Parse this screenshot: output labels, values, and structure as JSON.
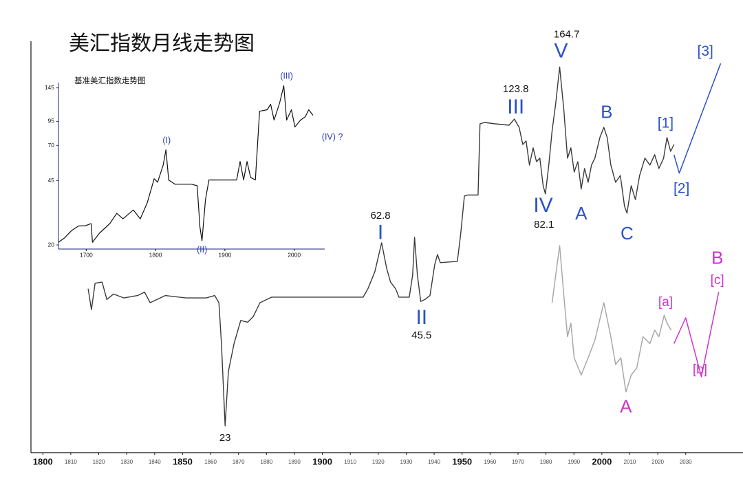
{
  "chart_data": [
    {
      "type": "line",
      "title": "美汇指数月线走势图",
      "xlim": [
        1796,
        2050
      ],
      "xticks": [
        1800,
        1810,
        1820,
        1830,
        1840,
        1850,
        1860,
        1870,
        1880,
        1890,
        1900,
        1910,
        1920,
        1930,
        1940,
        1950,
        1960,
        1970,
        1980,
        1990,
        2000,
        2010,
        2020,
        2030
      ],
      "ylim": [
        20,
        200
      ],
      "log_scale": true,
      "series": [
        {
          "color": "#3a3a3a",
          "x": [
            1816.2,
            1817.4,
            1818.7,
            1821.2,
            1822.9,
            1825.3,
            1829,
            1833.9,
            1836.4,
            1838.4,
            1843.8,
            1851.2,
            1858.5,
            1861.5,
            1863,
            1863.9,
            1865.2,
            1866.4,
            1868.4,
            1870.8,
            1873.3,
            1875.3,
            1877.7,
            1881.9,
            1890.5,
            1900.3,
            1907.7,
            1914.6,
            1916.3,
            1918.8,
            1921.2,
            1923,
            1924.4,
            1926.2,
            1927.4,
            1931.1,
            1932.3,
            1933,
            1934,
            1935.2,
            1936.7,
            1938.5,
            1940.2,
            1941.2,
            1942.2,
            1948.3,
            1949.5,
            1950.8,
            1952,
            1955.7,
            1956.4,
            1958.1,
            1961.8,
            1966.8,
            1968.7,
            1970.4,
            1971.7,
            1972.9,
            1974.1,
            1975.4,
            1976.6,
            1977.8,
            1979,
            1979.8,
            1981,
            1982.2,
            1983.5,
            1984.9,
            1986.4,
            1987.7,
            1988.9,
            1990.1,
            1991.4,
            1992.6,
            1993.8,
            1995.1,
            1996.3,
            1997.5,
            1999.3,
            2000.7,
            2001.9,
            2003.2,
            2004.9,
            2006.6,
            2008.1,
            2009,
            2010.5,
            2012,
            2013.5,
            2015.4,
            2017.2,
            2018.9,
            2020.4,
            2022.1,
            2023.3,
            2024.6,
            2025.8
          ],
          "values": [
            48.8,
            43.5,
            50.3,
            50.6,
            46,
            47.4,
            46.4,
            47,
            47.9,
            45.2,
            47,
            46.4,
            46.4,
            47,
            45.2,
            36.1,
            23,
            31,
            36.1,
            41,
            40.6,
            41.9,
            45.2,
            46.6,
            46.6,
            46.6,
            46.6,
            46.6,
            48.8,
            53.6,
            62.8,
            54.6,
            50.6,
            48.8,
            46.6,
            46.6,
            52.6,
            64.7,
            52.6,
            45.5,
            46,
            47,
            55.7,
            58.9,
            56.3,
            56.7,
            66,
            81.1,
            81.6,
            81.6,
            120.6,
            121.5,
            120.6,
            119.7,
            123.8,
            118.3,
            107.7,
            109.8,
            96.2,
            105.7,
            98,
            99.9,
            85.9,
            82.1,
            96.2,
            116,
            135,
            164.7,
            130,
            99.9,
            105.7,
            92.6,
            98,
            84.3,
            94.4,
            87.5,
            96.2,
            99.9,
            111.9,
            118.3,
            111.9,
            96.2,
            87.5,
            90.8,
            76.7,
            73.9,
            85.9,
            79.6,
            90.8,
            99.9,
            96.2,
            101.8,
            94.4,
            99.9,
            111.9,
            103.7,
            107.7
          ]
        },
        {
          "color": "#2a52c8",
          "x": [
            2025.8,
            2027.7,
            2042.5
          ],
          "values": [
            101.8,
            92,
            168
          ]
        },
        {
          "color": "#cc33cc",
          "x": [
            2025.8,
            2030,
            2035.6,
            2041.8
          ],
          "values": [
            36.1,
            41.6,
            30.1,
            47.9
          ]
        },
        {
          "color": "#a8a8a8",
          "x": [
            1982.2,
            1983.5,
            1984.9,
            1986.4,
            1987.7,
            1988.9,
            1990.1,
            1992.6,
            1995.1,
            1997.5,
            2000.7,
            2003.2,
            2004.9,
            2006.8,
            2008.6,
            2010.5,
            2012.5,
            2014.7,
            2017.2,
            2018.9,
            2020.4,
            2022.3,
            2023.3,
            2024.8
          ],
          "values": [
            45.2,
            52.6,
            61.8,
            47,
            37.5,
            40.4,
            33.4,
            30.4,
            33.4,
            36.8,
            45.2,
            37.5,
            32.2,
            33.4,
            27.7,
            30.4,
            31.6,
            37.5,
            36.1,
            38.9,
            37.5,
            42.2,
            40.4,
            38.9
          ]
        }
      ],
      "price_labels": [
        {
          "x": 1987.4,
          "value": 164.7
        },
        {
          "x": 1969.2,
          "value": 123.8
        },
        {
          "x": 1920.8,
          "value": 62.8
        },
        {
          "x": 1935.5,
          "value": 45.5
        },
        {
          "x": 1865.2,
          "value": 23
        },
        {
          "x": 1979.3,
          "value": 82.1
        }
      ],
      "wave_labels": [
        {
          "color": "#2a52c8",
          "labels": [
            {
              "text": "I",
              "x": 1920.8,
              "y": 66
            },
            {
              "text": "II",
              "x": 1935.5,
              "y": 41.4
            },
            {
              "text": "III",
              "x": 1969.2,
              "y": 131.5
            },
            {
              "text": "IV",
              "x": 1979,
              "y": 76.7
            },
            {
              "text": "V",
              "x": 1985.4,
              "y": 179
            },
            {
              "text": "A",
              "x": 1992.6,
              "y": 73.3
            },
            {
              "text": "B",
              "x": 2001.7,
              "y": 127.7
            },
            {
              "text": "C",
              "x": 2009,
              "y": 65.7
            },
            {
              "text": "[1]",
              "x": 2022.8,
              "y": 120.6
            },
            {
              "text": "[2]",
              "x": 2028.5,
              "y": 84.3
            },
            {
              "text": "[3]",
              "x": 2037,
              "y": 179
            }
          ]
        },
        {
          "color": "#cc33cc",
          "labels": [
            {
              "text": "A",
              "x": 2008.6,
              "y": 25.4
            },
            {
              "text": "B",
              "x": 2041.3,
              "y": 57.4
            },
            {
              "text": "[c]",
              "x": 2041.3,
              "y": 51
            },
            {
              "text": "[a]",
              "x": 2022.8,
              "y": 45.2
            },
            {
              "text": "[b]",
              "x": 2035.1,
              "y": 31.2
            }
          ]
        }
      ]
    },
    {
      "type": "line",
      "title": "基准美汇指数走势图",
      "xlim": [
        1660,
        2044
      ],
      "xticks": [
        1700,
        1800,
        1900,
        2000
      ],
      "ylim": [
        19,
        155
      ],
      "yticks": [
        20,
        45,
        70,
        95,
        145
      ],
      "log_scale": true,
      "series": [
        {
          "color": "#111111",
          "x": [
            1660,
            1669,
            1679,
            1689,
            1699,
            1707,
            1709,
            1719,
            1734,
            1744,
            1753,
            1768,
            1778,
            1788,
            1798,
            1803,
            1811,
            1815,
            1819,
            1828,
            1852,
            1860,
            1864,
            1867,
            1872,
            1877,
            1917,
            1922,
            1927,
            1932,
            1937,
            1944,
            1950,
            1961,
            1966,
            1971,
            1979,
            1985,
            1989,
            1996,
            2001,
            2009,
            2016,
            2021,
            2027
          ],
          "values": [
            20.7,
            21.9,
            24,
            25.4,
            25.5,
            26.2,
            20.7,
            23.2,
            26.2,
            29.8,
            27.8,
            31.1,
            27.8,
            34,
            46.1,
            44.1,
            54.8,
            66.4,
            45.4,
            43,
            43,
            42.2,
            25.1,
            21.1,
            35.5,
            45.4,
            45.4,
            57.3,
            45.4,
            57.3,
            46.9,
            45.4,
            108,
            110,
            117.9,
            96.5,
            120,
            149,
            96.5,
            110,
            88.5,
            96.5,
            100.8,
            110,
            102.6
          ]
        }
      ],
      "wave_labels": [
        {
          "color": "#2a3fb0",
          "labels": [
            {
              "text": "(I)",
              "x": 1816,
              "y": 74.3
            },
            {
              "text": "(II)",
              "x": 1867,
              "y": 18.7
            },
            {
              "text": "(III)",
              "x": 1989,
              "y": 167
            },
            {
              "text": "(IV) ?",
              "x": 2055,
              "y": 77.7
            }
          ]
        }
      ]
    }
  ]
}
